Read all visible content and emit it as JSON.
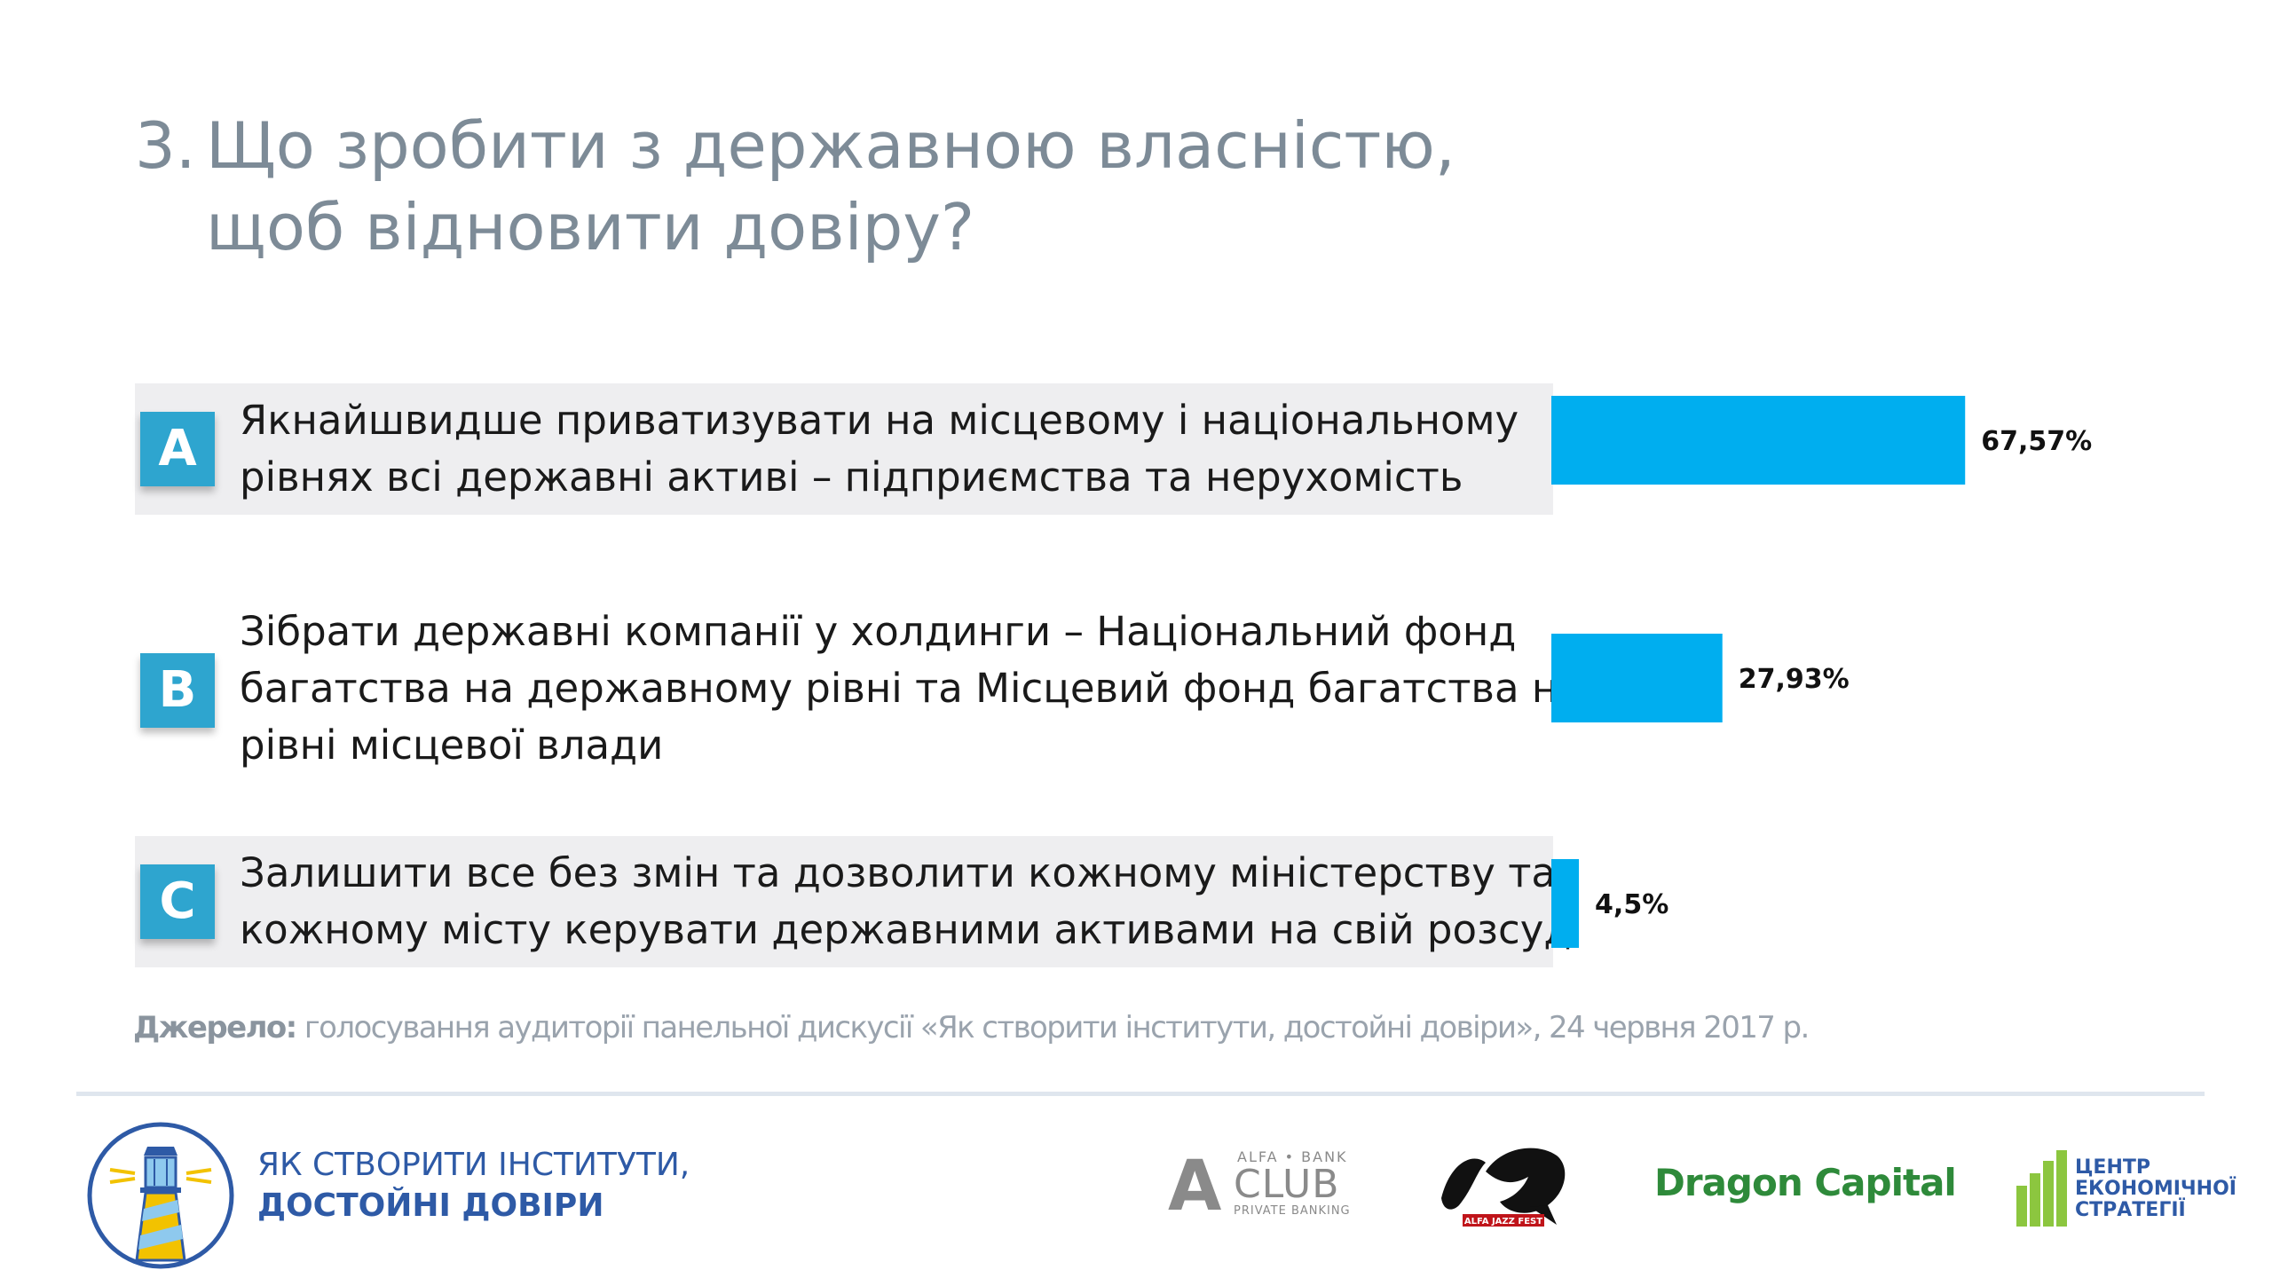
{
  "title": {
    "number": "3.",
    "line1": "Що зробити з державною власністю,",
    "line2": "щоб відновити довіру?"
  },
  "options": [
    {
      "letter": "A",
      "lines": [
        "Якнайшвидше приватизувати на місцевому і національному",
        "рівнях всі державні активі – підприємства та нерухомість"
      ]
    },
    {
      "letter": "B",
      "lines": [
        "Зібрати державні компанії у холдинги – Національний фонд",
        "багатства на державному рівні та Місцевий фонд багатства на",
        "рівні місцевої влади"
      ]
    },
    {
      "letter": "C",
      "lines": [
        "Залишити все без змін та дозволити кожному міністерству та",
        "кожному місту керувати державними активами на свій розсуд"
      ]
    }
  ],
  "chart_data": {
    "type": "bar",
    "orientation": "horizontal",
    "categories": [
      "A",
      "B",
      "C"
    ],
    "values": [
      67.57,
      27.93,
      4.5
    ],
    "labels": [
      "67,57%",
      "27,93%",
      "4,5%"
    ],
    "xlim": [
      0,
      100
    ],
    "grid": false,
    "color": "#00aeef"
  },
  "source": {
    "label": "Джерело:",
    "text": " голосування аудиторії панельної дискусії «Як створити інститути, достойні довіри», 24 червня 2017 р."
  },
  "footer": {
    "brand_line1": "ЯК СТВОРИТИ ІНСТИТУТИ,",
    "brand_line2": "ДОСТОЙНІ ДОВІРИ",
    "sponsors": {
      "alfa": {
        "letter": "A",
        "top": "ALFA • BANK",
        "main": "CLUB",
        "bottom": "PRIVATE BANKING"
      },
      "jazz": "ALFA JAZZ FEST",
      "dragon": "Dragon Capital",
      "ces": [
        "ЦЕНТР",
        "ЕКОНОМІЧНОЇ",
        "СТРАТЕГІЇ"
      ]
    }
  }
}
